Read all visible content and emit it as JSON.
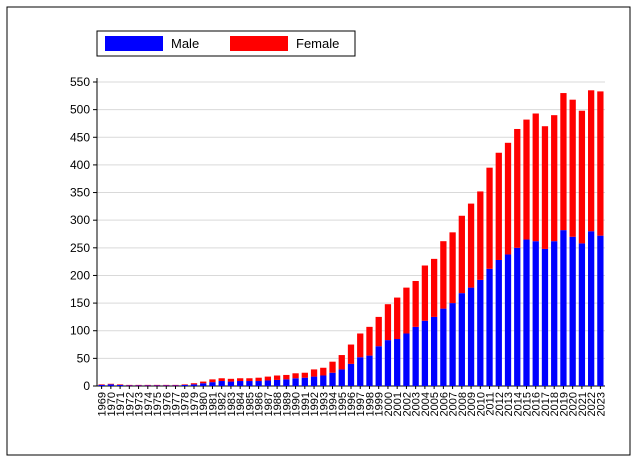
{
  "chart_data": {
    "type": "stacked-bar",
    "categories": [
      "1969",
      "1970",
      "1971",
      "1972",
      "1973",
      "1974",
      "1975",
      "1976",
      "1977",
      "1978",
      "1979",
      "1980",
      "1981",
      "1982",
      "1983",
      "1984",
      "1985",
      "1986",
      "1987",
      "1988",
      "1989",
      "1990",
      "1991",
      "1992",
      "1993",
      "1994",
      "1995",
      "1996",
      "1997",
      "1998",
      "1999",
      "2000",
      "2001",
      "2002",
      "2003",
      "2004",
      "2005",
      "2006",
      "2007",
      "2008",
      "2009",
      "2010",
      "2011",
      "2012",
      "2013",
      "2014",
      "2015",
      "2016",
      "2017",
      "2018",
      "2019",
      "2020",
      "2021",
      "2022",
      "2023"
    ],
    "series": [
      {
        "name": "Male",
        "color": "#0000ff",
        "values": [
          2,
          3,
          2,
          1,
          1,
          1,
          1,
          1,
          1,
          2,
          3,
          5,
          7,
          9,
          8,
          9,
          9,
          9,
          10,
          11,
          12,
          14,
          15,
          17,
          19,
          24,
          30,
          40,
          52,
          55,
          72,
          83,
          85,
          95,
          107,
          118,
          125,
          140,
          150,
          168,
          178,
          192,
          212,
          228,
          238,
          250,
          265,
          262,
          248,
          262,
          282,
          270,
          258,
          280,
          272
        ]
      },
      {
        "name": "Female",
        "color": "#ff0000",
        "values": [
          1,
          1,
          1,
          1,
          1,
          1,
          1,
          1,
          1,
          1,
          2,
          3,
          5,
          5,
          5,
          5,
          5,
          6,
          7,
          8,
          8,
          9,
          9,
          13,
          14,
          20,
          26,
          35,
          43,
          52,
          53,
          65,
          75,
          83,
          83,
          100,
          105,
          122,
          128,
          140,
          152,
          160,
          183,
          194,
          202,
          215,
          217,
          231,
          222,
          228,
          248,
          248,
          240,
          255,
          261
        ]
      }
    ],
    "ylim": [
      0,
      550
    ],
    "yticks": [
      0,
      50,
      100,
      150,
      200,
      250,
      300,
      350,
      400,
      450,
      500,
      550
    ],
    "grid": true
  }
}
